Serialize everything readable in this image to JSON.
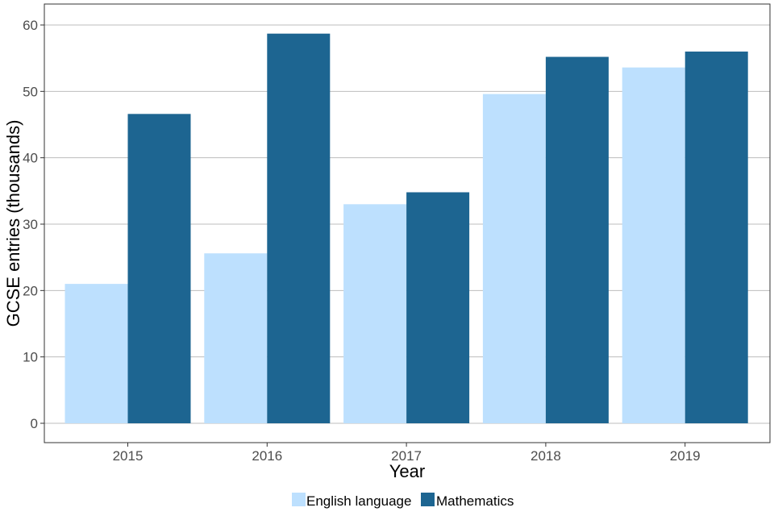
{
  "chart_data": {
    "type": "bar",
    "categories": [
      "2015",
      "2016",
      "2017",
      "2018",
      "2019"
    ],
    "series": [
      {
        "name": "English language",
        "color": "#bde0fe",
        "values": [
          21.0,
          25.6,
          33.0,
          49.6,
          53.6
        ]
      },
      {
        "name": "Mathematics",
        "color": "#1d6591",
        "values": [
          46.6,
          58.7,
          34.8,
          55.2,
          56.0
        ]
      }
    ],
    "xlabel": "Year",
    "ylabel": "GCSE entries (thousands)",
    "ylim": [
      0,
      63
    ],
    "yticks": [
      0,
      10,
      20,
      30,
      40,
      50,
      60
    ],
    "grid": true,
    "legend": "bottom"
  }
}
